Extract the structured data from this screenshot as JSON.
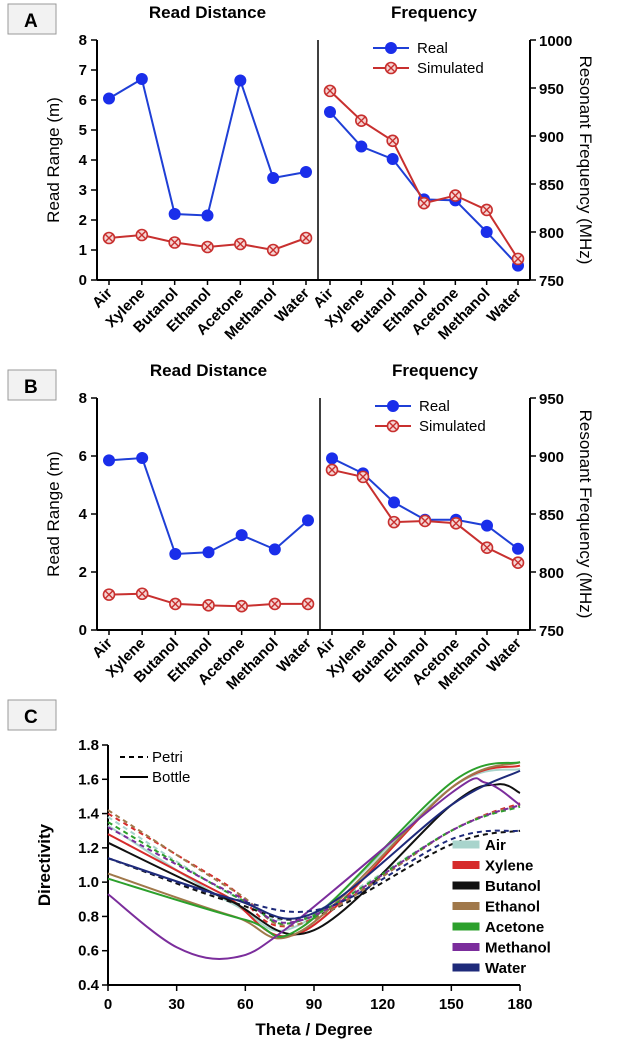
{
  "panel_labels": {
    "a": "A",
    "b": "B",
    "c": "C"
  },
  "colors": {
    "real": "#1f3fd6",
    "real_marker": "#1a2eea",
    "simulated": "#c8302f"
  },
  "chart_data": [
    {
      "id": "A",
      "type": "line",
      "panels": [
        "Read Distance",
        "Frequency"
      ],
      "categories": [
        "Air",
        "Xylene",
        "Butanol",
        "Ethanol",
        "Acetone",
        "Methanol",
        "Water"
      ],
      "ylabel_left": "Read Range (m)",
      "ylabel_right": "Resonant Frequency (MHz)",
      "ylim_left": [
        0,
        8
      ],
      "yticks_left": [
        "0",
        "1",
        "2",
        "3",
        "4",
        "5",
        "6",
        "7",
        "8"
      ],
      "ylim_right": [
        750,
        1000
      ],
      "yticks_right": [
        "750",
        "800",
        "850",
        "900",
        "950",
        "1000"
      ],
      "legend": [
        "Real",
        "Simulated"
      ],
      "read_distance": {
        "real": [
          6.05,
          6.7,
          2.2,
          2.15,
          6.65,
          3.4,
          3.6
        ],
        "simulated": [
          1.4,
          1.5,
          1.25,
          1.1,
          1.2,
          1.0,
          1.4
        ]
      },
      "frequency": {
        "real": [
          925,
          889,
          876,
          834,
          833,
          800,
          765
        ],
        "simulated": [
          947,
          916,
          895,
          830,
          838,
          823,
          772
        ]
      }
    },
    {
      "id": "B",
      "type": "line",
      "panels": [
        "Read Distance",
        "Frequency"
      ],
      "categories": [
        "Air",
        "Xylene",
        "Butanol",
        "Ethanol",
        "Acetone",
        "Methanol",
        "Water"
      ],
      "ylabel_left": "Read Range (m)",
      "ylabel_right": "Resonant Frequency (MHz)",
      "ylim_left": [
        0,
        8
      ],
      "yticks_left": [
        "0",
        "2",
        "4",
        "6",
        "8"
      ],
      "ylim_right": [
        750,
        950
      ],
      "yticks_right": [
        "750",
        "800",
        "850",
        "900",
        "950"
      ],
      "legend": [
        "Real",
        "Simulated"
      ],
      "read_distance": {
        "real": [
          5.85,
          5.93,
          2.62,
          2.68,
          3.27,
          2.78,
          3.78
        ],
        "simulated": [
          1.22,
          1.25,
          0.9,
          0.85,
          0.82,
          0.9,
          0.9
        ]
      },
      "frequency": {
        "real": [
          898,
          885,
          860,
          845,
          845,
          840,
          820
        ],
        "simulated": [
          888,
          882,
          843,
          844,
          842,
          821,
          808
        ]
      }
    },
    {
      "id": "C",
      "type": "line",
      "xlabel": "Theta / Degree",
      "ylabel": "Directivity",
      "xlim": [
        0,
        180
      ],
      "ylim": [
        0.4,
        1.8
      ],
      "xticks": [
        "0",
        "30",
        "60",
        "90",
        "120",
        "150",
        "180"
      ],
      "yticks": [
        "0.4",
        "0.6",
        "0.8",
        "1.0",
        "1.2",
        "1.4",
        "1.6",
        "1.8"
      ],
      "style_legend": [
        "Petri",
        "Bottle"
      ],
      "series": [
        {
          "name": "Air",
          "color": "#a8d4cc",
          "bottle": [
            [
              0,
              1.33
            ],
            [
              55,
              0.87
            ],
            [
              85,
              0.76
            ],
            [
              150,
              1.55
            ],
            [
              180,
              1.66
            ]
          ],
          "petri": [
            [
              0,
              1.38
            ],
            [
              55,
              0.92
            ],
            [
              85,
              0.8
            ],
            [
              150,
              1.3
            ],
            [
              180,
              1.45
            ]
          ]
        },
        {
          "name": "Xylene",
          "color": "#d62b2b",
          "bottle": [
            [
              0,
              1.28
            ],
            [
              50,
              0.93
            ],
            [
              85,
              0.71
            ],
            [
              150,
              1.55
            ],
            [
              180,
              1.68
            ]
          ],
          "petri": [
            [
              0,
              1.4
            ],
            [
              50,
              1.0
            ],
            [
              82,
              0.75
            ],
            [
              150,
              1.3
            ],
            [
              180,
              1.46
            ]
          ]
        },
        {
          "name": "Butanol",
          "color": "#111111",
          "bottle": [
            [
              0,
              1.23
            ],
            [
              52,
              0.9
            ],
            [
              90,
              0.72
            ],
            [
              150,
              1.45
            ],
            [
              170,
              1.57
            ],
            [
              180,
              1.52
            ]
          ],
          "petri": [
            [
              0,
              1.14
            ],
            [
              55,
              0.88
            ],
            [
              90,
              0.8
            ],
            [
              150,
              1.22
            ],
            [
              180,
              1.3
            ]
          ]
        },
        {
          "name": "Ethanol",
          "color": "#a0784a",
          "bottle": [
            [
              0,
              1.05
            ],
            [
              55,
              0.8
            ],
            [
              85,
              0.72
            ],
            [
              150,
              1.55
            ],
            [
              180,
              1.7
            ]
          ],
          "petri": [
            [
              0,
              1.42
            ],
            [
              55,
              0.95
            ],
            [
              85,
              0.76
            ],
            [
              150,
              1.3
            ],
            [
              180,
              1.45
            ]
          ]
        },
        {
          "name": "Acetone",
          "color": "#2ca02c",
          "bottle": [
            [
              0,
              1.02
            ],
            [
              60,
              0.78
            ],
            [
              85,
              0.74
            ],
            [
              150,
              1.58
            ],
            [
              180,
              1.7
            ]
          ],
          "petri": [
            [
              0,
              1.35
            ],
            [
              58,
              0.9
            ],
            [
              85,
              0.78
            ],
            [
              150,
              1.3
            ],
            [
              180,
              1.44
            ]
          ]
        },
        {
          "name": "Methanol",
          "color": "#7b2d9c",
          "bottle": [
            [
              0,
              0.93
            ],
            [
              30,
              0.62
            ],
            [
              55,
              0.56
            ],
            [
              80,
              0.75
            ],
            [
              150,
              1.52
            ],
            [
              165,
              1.58
            ],
            [
              180,
              1.45
            ]
          ],
          "petri": [
            [
              0,
              1.32
            ],
            [
              55,
              0.93
            ],
            [
              85,
              0.78
            ],
            [
              150,
              1.3
            ],
            [
              180,
              1.45
            ]
          ]
        },
        {
          "name": "Water",
          "color": "#1e2a7a",
          "bottle": [
            [
              0,
              1.14
            ],
            [
              55,
              0.9
            ],
            [
              90,
              0.82
            ],
            [
              150,
              1.45
            ],
            [
              180,
              1.65
            ]
          ],
          "petri": [
            [
              0,
              1.14
            ],
            [
              55,
              0.9
            ],
            [
              95,
              0.85
            ],
            [
              150,
              1.25
            ],
            [
              180,
              1.3
            ]
          ]
        }
      ]
    }
  ]
}
